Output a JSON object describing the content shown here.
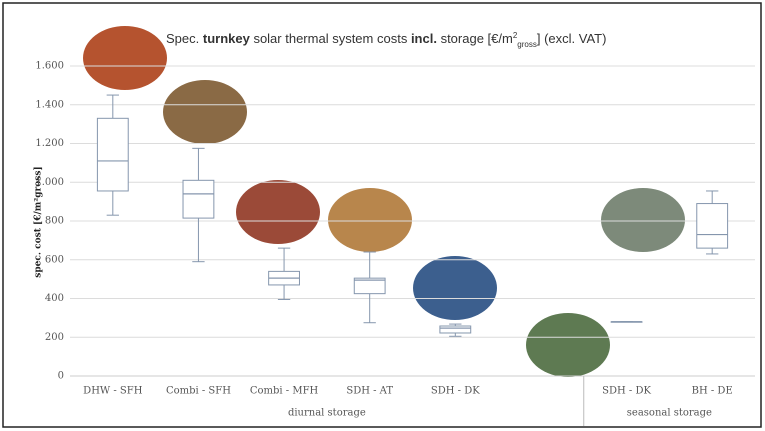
{
  "chart_data": {
    "type": "box",
    "title_parts": [
      "Spec. ",
      "turnkey",
      " solar  thermal system costs ",
      "incl.",
      " storage [€/m",
      "2",
      "gross",
      "] (excl. VAT)"
    ],
    "y_label": "spec. cost [€/m²gross]",
    "ylim": [
      0,
      1600
    ],
    "yticks": [
      0,
      200,
      400,
      600,
      800,
      {
        "value": 1000,
        "label": "1.000"
      },
      {
        "value": 1200,
        "label": "1.200"
      },
      {
        "value": 1400,
        "label": "1.400"
      },
      {
        "value": 1600,
        "label": "1.600"
      }
    ],
    "grid": true,
    "color": "#8596ad",
    "groups": [
      {
        "name": "diurnal storage",
        "categories": [
          "DHW - SFH",
          "Combi - SFH",
          "Combi - MFH",
          "SDH - AT",
          "SDH - DK",
          null
        ],
        "boxes": [
          {
            "min": 830,
            "q1": 955,
            "median": 1110,
            "q3": 1330,
            "max": 1450
          },
          {
            "min": 590,
            "q1": 815,
            "median": 940,
            "q3": 1010,
            "max": 1175
          },
          {
            "min": 395,
            "q1": 470,
            "median": 505,
            "q3": 540,
            "max": 660
          },
          {
            "min": 275,
            "q1": 425,
            "median": 495,
            "q3": 505,
            "max": 640
          },
          {
            "min": 205,
            "q1": 222,
            "median": 247,
            "q3": 258,
            "max": 268
          },
          null
        ]
      },
      {
        "name": "seasonal storage",
        "categories": [
          "SDH - DK",
          "BH - DE"
        ],
        "boxes": [
          {
            "min": 280,
            "q1": 280,
            "median": 280,
            "q3": 280,
            "max": 280
          },
          {
            "min": 630,
            "q1": 660,
            "median": 730,
            "q3": 890,
            "max": 955
          }
        ]
      }
    ]
  }
}
